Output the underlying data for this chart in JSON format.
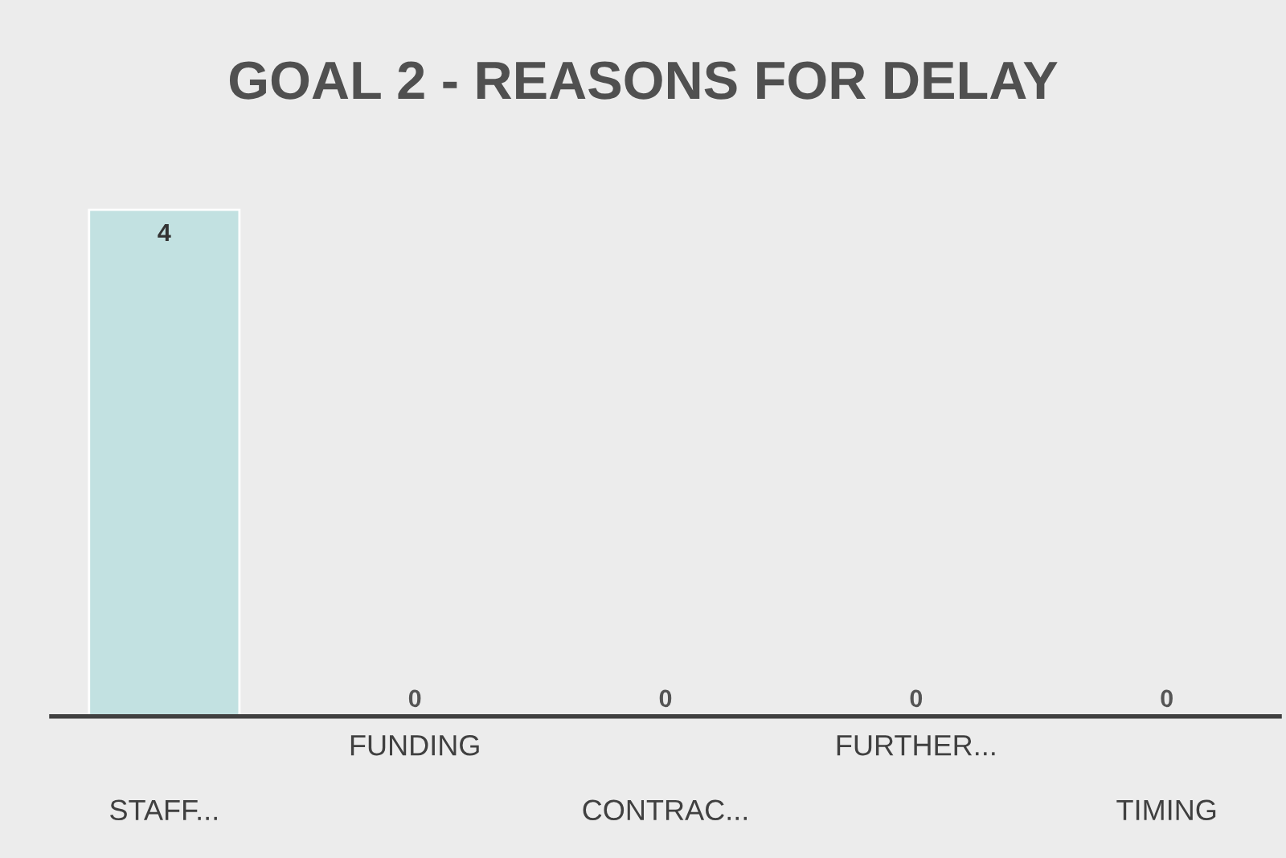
{
  "chart_data": {
    "type": "bar",
    "title": "GOAL 2 - REASONS FOR DELAY",
    "categories": [
      "STAFF...",
      "FUNDING",
      "CONTRAC...",
      "FURTHER...",
      "TIMING"
    ],
    "values": [
      4,
      0,
      0,
      0,
      0
    ],
    "color": "#c2e1e1",
    "data_labels": true,
    "grid": false,
    "legend": false
  }
}
